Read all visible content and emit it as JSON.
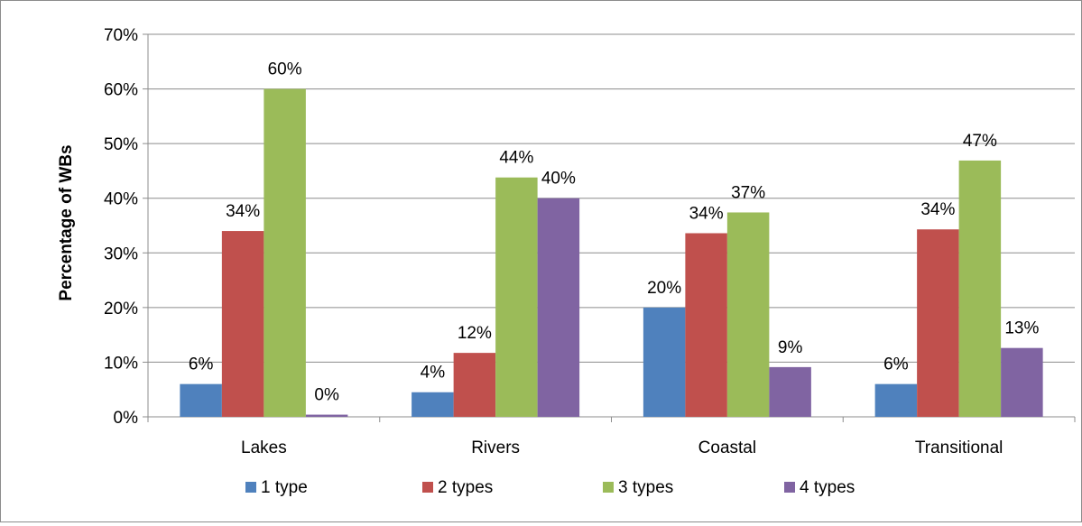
{
  "chart_data": {
    "type": "bar",
    "title": "",
    "xlabel": "",
    "ylabel": "Percentage of WBs",
    "ylim": [
      0,
      0.7
    ],
    "yticks": [
      0,
      0.1,
      0.2,
      0.3,
      0.4,
      0.5,
      0.6,
      0.7
    ],
    "ytick_labels": [
      "0%",
      "10%",
      "20%",
      "30%",
      "40%",
      "50%",
      "60%",
      "70%"
    ],
    "grid": true,
    "legend_position": "bottom",
    "categories": [
      "Lakes",
      "Rivers",
      "Coastal",
      "Transitional"
    ],
    "series": [
      {
        "name": "1 type",
        "color": "#4f81bd",
        "values": [
          0.06,
          0.045,
          0.2,
          0.06
        ],
        "labels": [
          "6%",
          "4%",
          "20%",
          "6%"
        ]
      },
      {
        "name": "2 types",
        "color": "#c0504d",
        "values": [
          0.34,
          0.117,
          0.336,
          0.343
        ],
        "labels": [
          "34%",
          "12%",
          "34%",
          "34%"
        ]
      },
      {
        "name": "3 types",
        "color": "#9bbb59",
        "values": [
          0.6,
          0.438,
          0.374,
          0.469
        ],
        "labels": [
          "60%",
          "44%",
          "37%",
          "47%"
        ]
      },
      {
        "name": "4 types",
        "color": "#8064a2",
        "values": [
          0.004,
          0.4,
          0.091,
          0.126
        ],
        "labels": [
          "0%",
          "40%",
          "9%",
          "13%"
        ]
      }
    ]
  }
}
